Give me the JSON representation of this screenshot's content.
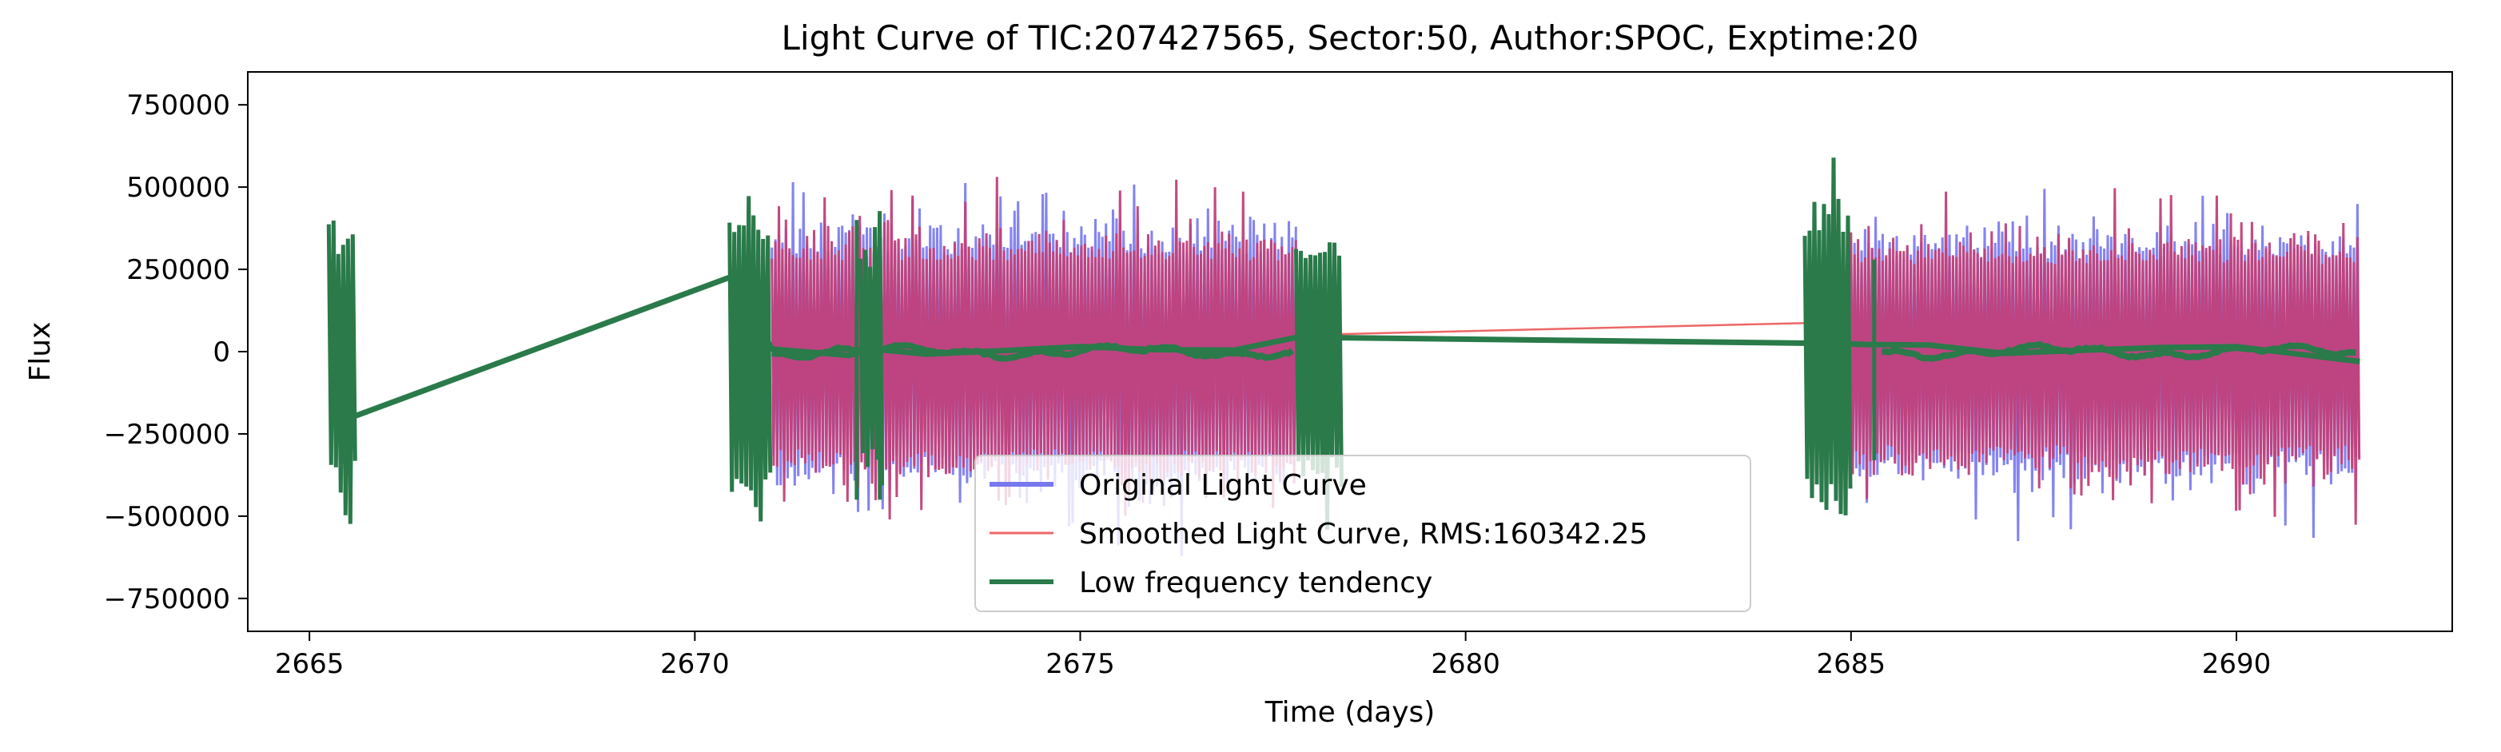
{
  "chart_data": {
    "type": "line",
    "title": "Light Curve of TIC:207427565, Sector:50, Author:SPOC, Exptime:20",
    "xlabel": "Time (days)",
    "ylabel": "Flux",
    "xlim": [
      2664.2,
      2692.8
    ],
    "ylim": [
      -850000,
      850000
    ],
    "xticks": [
      2665,
      2670,
      2675,
      2680,
      2685,
      2690
    ],
    "xtick_labels": [
      "2665",
      "2670",
      "2675",
      "2680",
      "2685",
      "2690"
    ],
    "yticks": [
      -750000,
      -500000,
      -250000,
      0,
      250000,
      500000,
      750000
    ],
    "ytick_labels": [
      "−750000",
      "−500000",
      "−250000",
      "0",
      "250000",
      "500000",
      "750000"
    ],
    "grid": false,
    "legend_position": "lower-center",
    "segments": [
      {
        "name": "orbit-1-start",
        "x": [
          2665.25,
          2665.6
        ],
        "amplitude": 450000
      },
      {
        "name": "orbit-1-main",
        "x": [
          2670.45,
          2678.4
        ],
        "amplitude": 460000
      },
      {
        "name": "orbit-2-main",
        "x": [
          2684.4,
          2691.6
        ],
        "amplitude": 440000
      }
    ],
    "series": [
      {
        "name": "Original Light Curve",
        "color": "#7777ee",
        "values_description_range": [
          -700000,
          760000
        ]
      },
      {
        "name": "Smoothed Light Curve, RMS:160342.25",
        "color": "#ee6666",
        "rms": 160342.25
      },
      {
        "name": "Low frequency tendency",
        "color": "#2a7a4a",
        "x": [
          2665.6,
          2670.5,
          2671.0,
          2672.0,
          2672.3,
          2673.0,
          2674.0,
          2675.0,
          2676.0,
          2677.0,
          2677.8,
          2678.4,
          2684.9,
          2685.2,
          2686.0,
          2687.0,
          2688.0,
          2689.0,
          2690.0,
          2691.6
        ],
        "y": [
          -195000,
          230000,
          5000,
          -10000,
          5000,
          -5000,
          5000,
          15000,
          10000,
          5000,
          45000,
          45000,
          20000,
          20000,
          25000,
          -10000,
          0,
          10000,
          15000,
          -30000
        ]
      }
    ],
    "smoothed_gap_line": {
      "x": [
        2677.8,
        2685.0
      ],
      "y": [
        50000,
        90000
      ]
    }
  },
  "colors": {
    "original": "#7777ee",
    "smoothed": "#ee6666",
    "overlap": "#c0407a",
    "low_freq": "#2a7a4a"
  }
}
